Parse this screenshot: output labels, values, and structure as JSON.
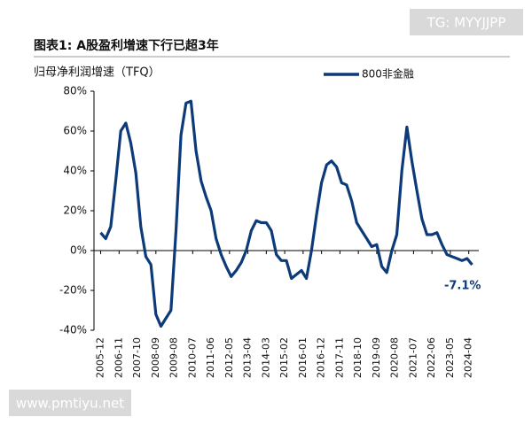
{
  "chart_data": {
    "type": "line",
    "title": "图表1:  A股盈利增速下行已超3年",
    "y_label": "归母净利润增速（TFQ）",
    "watermarks": [
      "TG: MYYJJPP",
      "www.pmtiyu.net"
    ],
    "annotation": "-7.1%",
    "x": [
      "2005-12",
      "2006-03",
      "2006-06",
      "2006-09",
      "2006-12",
      "2007-03",
      "2007-06",
      "2007-09",
      "2007-12",
      "2008-03",
      "2008-06",
      "2008-09",
      "2008-12",
      "2009-03",
      "2009-06",
      "2009-09",
      "2009-12",
      "2010-03",
      "2010-06",
      "2010-09",
      "2010-12",
      "2011-03",
      "2011-06",
      "2011-09",
      "2011-12",
      "2012-03",
      "2012-06",
      "2012-09",
      "2012-12",
      "2013-03",
      "2013-06",
      "2013-09",
      "2013-12",
      "2014-03",
      "2014-06",
      "2014-09",
      "2014-12",
      "2015-03",
      "2015-06",
      "2015-09",
      "2015-12",
      "2016-03",
      "2016-06",
      "2016-09",
      "2016-12",
      "2017-03",
      "2017-06",
      "2017-09",
      "2017-12",
      "2018-03",
      "2018-06",
      "2018-09",
      "2018-12",
      "2019-03",
      "2019-06",
      "2019-09",
      "2019-12",
      "2020-03",
      "2020-06",
      "2020-09",
      "2020-12",
      "2021-03",
      "2021-06",
      "2021-09",
      "2021-12",
      "2022-03",
      "2022-06",
      "2022-09",
      "2022-12",
      "2023-03",
      "2023-06",
      "2023-09",
      "2023-12",
      "2024-03",
      "2024-06"
    ],
    "series": [
      {
        "name": "800非金融",
        "color": "#0d3a78",
        "values": [
          9,
          6,
          12,
          35,
          60,
          64,
          54,
          39,
          12,
          -3,
          -7,
          -32,
          -38,
          -34,
          -30,
          10,
          58,
          74,
          75,
          50,
          35,
          27,
          20,
          6,
          -2,
          -8,
          -13,
          -10,
          -6,
          0,
          10,
          15,
          14,
          14,
          10,
          -2,
          -5,
          -5,
          -14,
          -12,
          -10,
          -14,
          0,
          18,
          34,
          43,
          45,
          42,
          34,
          33,
          25,
          14,
          10,
          6,
          2,
          3,
          -8,
          -11,
          0,
          8,
          40,
          62,
          45,
          30,
          16,
          8,
          8,
          9,
          3,
          -2,
          -3,
          -4,
          -5,
          -4,
          -7.1
        ]
      }
    ],
    "xlim": [
      "2005-08",
      "2024-10"
    ],
    "xticks": [
      "2005-12",
      "2006-11",
      "2007-10",
      "2008-09",
      "2009-08",
      "2010-07",
      "2011-06",
      "2012-05",
      "2013-04",
      "2014-03",
      "2015-02",
      "2016-01",
      "2016-12",
      "2017-11",
      "2018-10",
      "2019-09",
      "2020-08",
      "2021-07",
      "2022-06",
      "2023-05",
      "2024-04"
    ],
    "ylim": [
      -40,
      80
    ],
    "yticks": [
      {
        "value": -40,
        "label": "-40%"
      },
      {
        "value": -20,
        "label": "-20%"
      },
      {
        "value": 0,
        "label": "0%"
      },
      {
        "value": 20,
        "label": "20%"
      },
      {
        "value": 40,
        "label": "40%"
      },
      {
        "value": 60,
        "label": "60%"
      },
      {
        "value": 80,
        "label": "80%"
      }
    ],
    "grid": false
  }
}
